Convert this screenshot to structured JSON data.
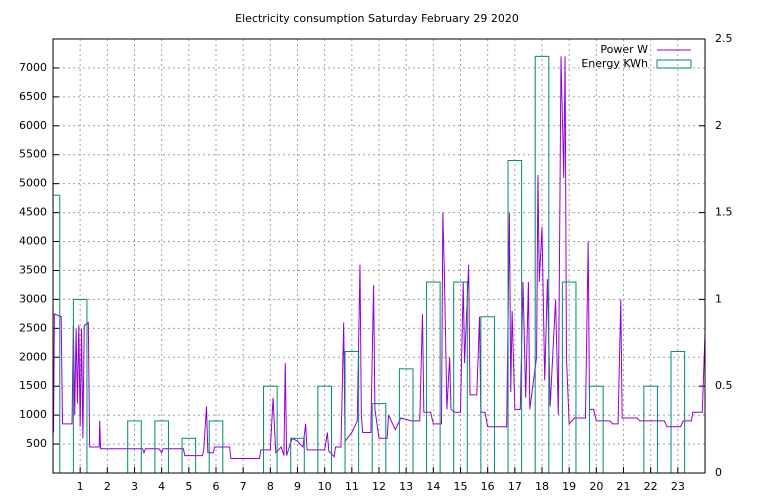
{
  "chart_data": {
    "type": "line-and-boxes",
    "title": "Electricity consumption Saturday February 29 2020",
    "xlim": [
      0,
      24
    ],
    "xticks": [
      1,
      2,
      3,
      4,
      5,
      6,
      7,
      8,
      9,
      10,
      11,
      12,
      13,
      14,
      15,
      16,
      17,
      18,
      19,
      20,
      21,
      22,
      23
    ],
    "ylim": [
      0,
      7500
    ],
    "yticks": [
      500,
      1000,
      1500,
      2000,
      2500,
      3000,
      3500,
      4000,
      4500,
      5000,
      5500,
      6000,
      6500,
      7000
    ],
    "y2lim": [
      0,
      2.5
    ],
    "y2ticks": [
      0,
      0.5,
      1,
      1.5,
      2,
      2.5
    ],
    "grid": true,
    "legend": "top-right",
    "series": [
      {
        "name": "Power W",
        "color": "#9400d3",
        "x": [
          0.0,
          0.02,
          0.05,
          0.3,
          0.35,
          0.7,
          0.75,
          0.8,
          0.85,
          0.9,
          0.95,
          1.0,
          1.05,
          1.1,
          1.15,
          1.3,
          1.35,
          1.7,
          1.72,
          1.75,
          3.3,
          3.35,
          3.4,
          3.9,
          4.0,
          4.05,
          4.8,
          4.85,
          5.5,
          5.55,
          5.65,
          5.7,
          5.9,
          5.95,
          6.5,
          6.55,
          7.6,
          7.65,
          8.0,
          8.1,
          8.2,
          8.4,
          8.5,
          8.55,
          8.6,
          8.8,
          9.0,
          9.2,
          9.3,
          9.35,
          10.0,
          10.1,
          10.15,
          10.35,
          10.4,
          10.6,
          10.7,
          10.75,
          11.0,
          11.2,
          11.3,
          11.35,
          11.4,
          11.7,
          11.8,
          11.85,
          12.0,
          12.3,
          12.35,
          12.6,
          12.8,
          13.2,
          13.5,
          13.6,
          13.65,
          13.9,
          14.0,
          14.3,
          14.35,
          14.4,
          14.5,
          14.6,
          14.65,
          14.8,
          15.0,
          15.1,
          15.15,
          15.3,
          15.35,
          15.6,
          15.7,
          15.75,
          15.9,
          16.0,
          16.7,
          16.8,
          16.85,
          16.9,
          17.0,
          17.2,
          17.3,
          17.4,
          17.5,
          17.55,
          17.8,
          17.85,
          17.9,
          18.0,
          18.1,
          18.2,
          18.3,
          18.5,
          18.6,
          18.7,
          18.8,
          18.85,
          18.9,
          19.0,
          19.2,
          19.6,
          19.7,
          19.75,
          19.9,
          20.0,
          20.5,
          20.6,
          20.8,
          20.9,
          20.95,
          21.5,
          21.6,
          22.0,
          22.5,
          22.6,
          23.1,
          23.2,
          23.5,
          23.55,
          23.9,
          24.0
        ],
        "values": [
          1250,
          700,
          2750,
          2700,
          850,
          850,
          2550,
          1000,
          2500,
          1200,
          2550,
          800,
          2500,
          600,
          2550,
          2600,
          450,
          450,
          900,
          420,
          420,
          350,
          420,
          420,
          350,
          420,
          420,
          300,
          300,
          400,
          1150,
          350,
          350,
          450,
          450,
          250,
          250,
          400,
          400,
          1300,
          350,
          450,
          300,
          1900,
          300,
          600,
          550,
          450,
          850,
          400,
          400,
          700,
          380,
          280,
          450,
          450,
          2600,
          550,
          700,
          900,
          3600,
          1000,
          700,
          700,
          3250,
          1100,
          600,
          600,
          1000,
          750,
          950,
          900,
          900,
          2750,
          1050,
          1050,
          850,
          850,
          4500,
          3600,
          1100,
          2000,
          1100,
          1050,
          1050,
          3300,
          1900,
          3600,
          1350,
          1350,
          2700,
          1050,
          1050,
          800,
          800,
          4500,
          1400,
          2800,
          1100,
          1100,
          3300,
          1300,
          3300,
          1100,
          2000,
          5150,
          3300,
          4250,
          1600,
          3350,
          1150,
          3000,
          1000,
          7200,
          5100,
          7200,
          2000,
          850,
          950,
          950,
          4000,
          1100,
          1100,
          900,
          900,
          850,
          850,
          3000,
          950,
          950,
          900,
          900,
          900,
          800,
          800,
          900,
          900,
          1050,
          1050,
          2400
        ]
      },
      {
        "name": "Energy KWh",
        "color": "#008b74",
        "axis": "y2",
        "x": [
          0,
          1,
          3,
          4,
          5,
          6,
          8,
          9,
          10,
          11,
          12,
          13,
          14,
          15,
          16,
          17,
          18,
          19,
          20,
          22,
          23
        ],
        "values": [
          1.6,
          1.0,
          0.3,
          0.3,
          0.2,
          0.3,
          0.5,
          0.2,
          0.5,
          0.7,
          0.4,
          0.6,
          1.1,
          1.1,
          0.9,
          1.8,
          2.4,
          1.1,
          0.5,
          0.5,
          0.7
        ]
      }
    ]
  }
}
